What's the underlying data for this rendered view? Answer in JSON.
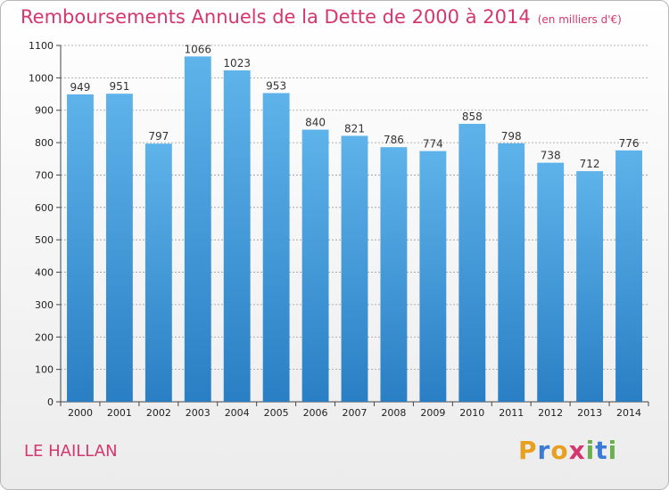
{
  "header": {
    "title": "Remboursements Annuels de la Dette de 2000 à 2014",
    "unit": "(en milliers d'€)"
  },
  "footer": {
    "commune": "LE HAILLAN",
    "logo_text": "Proxiti",
    "logo_letters": [
      {
        "char": "P",
        "color": "#e8a020"
      },
      {
        "char": "r",
        "color": "#3a7bd5"
      },
      {
        "char": "o",
        "color": "#e8a020"
      },
      {
        "char": "x",
        "color": "#d6356e"
      },
      {
        "char": "i",
        "color": "#6ab04c"
      },
      {
        "char": "t",
        "color": "#3a7bd5"
      },
      {
        "char": "i",
        "color": "#6ab04c"
      }
    ]
  },
  "colors": {
    "bar_top": "#5eb3ea",
    "bar_bottom": "#2a7fc4",
    "grid": "#9a9a9a",
    "axis": "#444444",
    "accent": "#d6356e"
  },
  "chart_data": {
    "type": "bar",
    "title": "Remboursements Annuels de la Dette de 2000 à 2014",
    "xlabel": "",
    "ylabel": "",
    "categories": [
      "2000",
      "2001",
      "2002",
      "2003",
      "2004",
      "2005",
      "2006",
      "2007",
      "2008",
      "2009",
      "2010",
      "2011",
      "2012",
      "2013",
      "2014"
    ],
    "values": [
      949,
      951,
      797,
      1066,
      1023,
      953,
      840,
      821,
      786,
      774,
      858,
      798,
      738,
      712,
      776
    ],
    "ylim": [
      0,
      1100
    ],
    "yticks": [
      0,
      100,
      200,
      300,
      400,
      500,
      600,
      700,
      800,
      900,
      1000,
      1100
    ],
    "grid": true,
    "data_labels": true
  }
}
